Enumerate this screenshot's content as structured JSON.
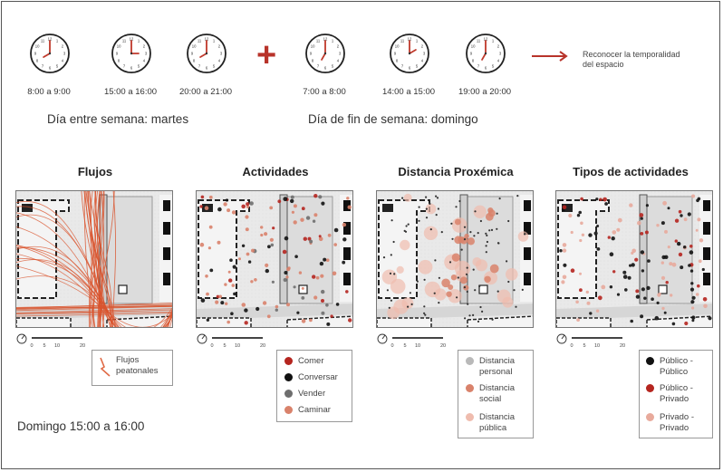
{
  "header": {
    "weekday_clocks": [
      {
        "label": "8:00 a 9:00",
        "hour": 8,
        "minute": 0
      },
      {
        "label": "15:00 a 16:00",
        "hour": 15,
        "minute": 0
      },
      {
        "label": "20:00 a 21:00",
        "hour": 20,
        "minute": 0
      }
    ],
    "weekend_clocks": [
      {
        "label": "7:00 a 8:00",
        "hour": 7,
        "minute": 0
      },
      {
        "label": "14:00 a 15:00",
        "hour": 14,
        "minute": 0
      },
      {
        "label": "19:00 a 20:00",
        "hour": 19,
        "minute": 0
      }
    ],
    "plus_symbol": "+",
    "result_text": "Reconocer la temporalidad del espacio",
    "weekday_label": "Día entre semana: martes",
    "weekend_label": "Día de fin de semana: domingo"
  },
  "panels": [
    {
      "title": "Flujos",
      "legend": [
        {
          "label": "Flujos peatonales",
          "symbol": "line",
          "color": "#e06a45"
        }
      ]
    },
    {
      "title": "Actividades",
      "legend": [
        {
          "label": "Comer",
          "color": "#b5251f"
        },
        {
          "label": "Conversar",
          "color": "#111111"
        },
        {
          "label": "Vender",
          "color": "#6e6e6e"
        },
        {
          "label": "Caminar",
          "color": "#d9826b"
        }
      ]
    },
    {
      "title": "Distancia Proxémica",
      "legend": [
        {
          "label": "Distancia personal",
          "color": "#b9b9b9"
        },
        {
          "label": "Distancia social",
          "color": "#d9826b"
        },
        {
          "label": "Distancia pública",
          "color": "#efbcae"
        }
      ]
    },
    {
      "title": "Tipos de actividades",
      "legend": [
        {
          "label": "Público - Público",
          "color": "#111111"
        },
        {
          "label": "Público - Privado",
          "color": "#b5251f"
        },
        {
          "label": "Privado - Privado",
          "color": "#e8aa9c"
        }
      ]
    }
  ],
  "scale_ticks": [
    "0",
    "5",
    "10",
    "20"
  ],
  "footer_label": "Domingo 15:00 a 16:00",
  "colors": {
    "accent": "#b8332a",
    "flow": "#e06a45"
  }
}
